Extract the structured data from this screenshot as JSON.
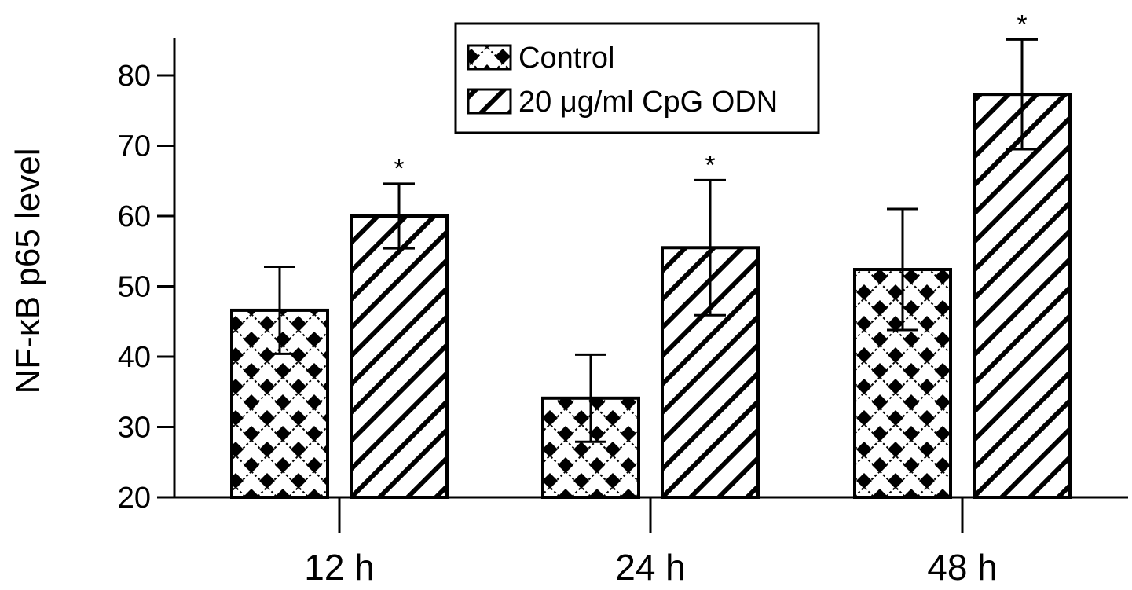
{
  "chart_data": {
    "type": "bar",
    "title": "",
    "xlabel": "",
    "ylabel": "NF-κB p65 level",
    "ylim": [
      20,
      85
    ],
    "yticks": [
      20,
      30,
      40,
      50,
      60,
      70,
      80
    ],
    "categories": [
      "12 h",
      "24 h",
      "48 h"
    ],
    "series": [
      {
        "name": "Control",
        "pattern": "checker",
        "values": [
          46.6,
          34.1,
          52.4
        ],
        "errors": [
          6.2,
          6.2,
          8.6
        ],
        "significance": [
          "",
          "",
          ""
        ]
      },
      {
        "name": "20 μg/ml CpG ODN",
        "pattern": "diagonal",
        "values": [
          60.0,
          55.5,
          77.3
        ],
        "errors": [
          4.6,
          9.6,
          7.8
        ],
        "significance": [
          "*",
          "*",
          "*"
        ]
      }
    ],
    "legend": {
      "position": "top-center",
      "border": true
    },
    "grid": false,
    "colors": {
      "bar_edge": "#000000",
      "fill": "#000000",
      "background": "#ffffff"
    }
  }
}
